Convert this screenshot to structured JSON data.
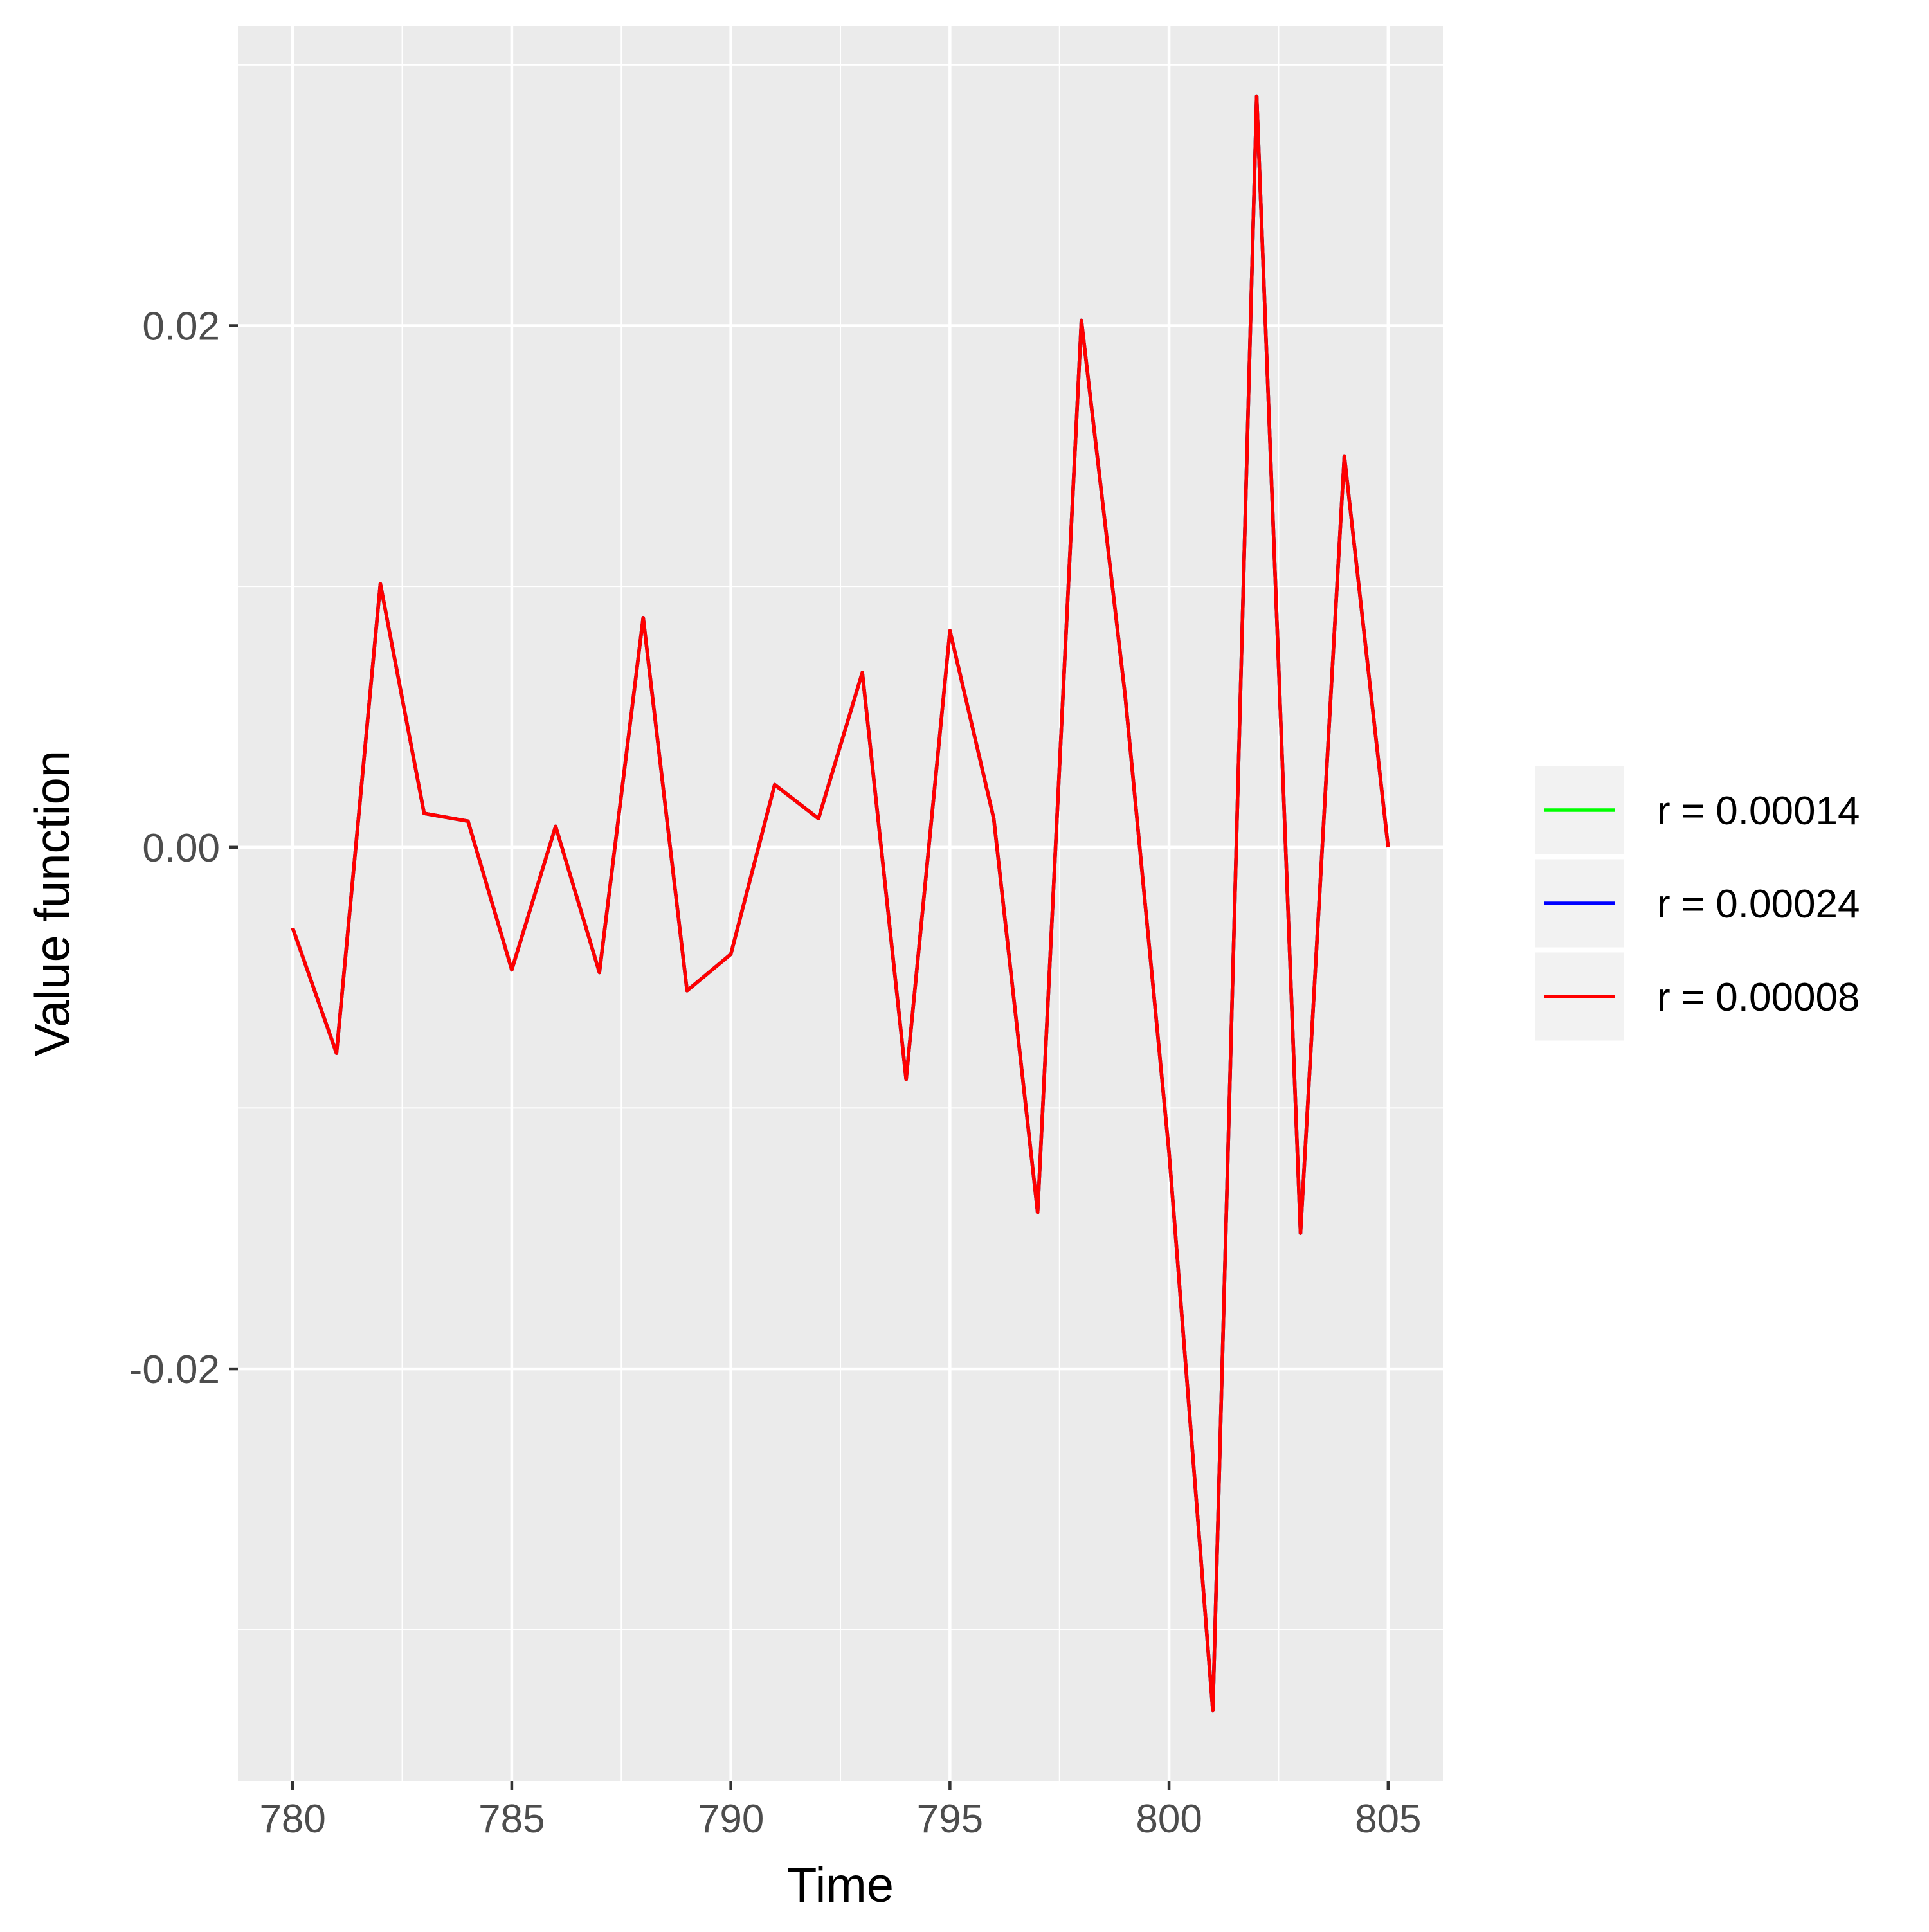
{
  "chart_data": {
    "type": "line",
    "xlabel": "Time",
    "ylabel": "Value function",
    "xlim": [
      778.75,
      806.25
    ],
    "ylim": [
      -0.0358,
      0.0315
    ],
    "x_ticks": [
      780,
      785,
      790,
      795,
      800,
      805
    ],
    "x_tick_labels": [
      "780",
      "785",
      "790",
      "795",
      "800",
      "805"
    ],
    "y_ticks": [
      -0.02,
      0.0,
      0.02
    ],
    "y_tick_labels": [
      "-0.02",
      "0.00",
      "0.02"
    ],
    "grid": true,
    "legend_position": "right",
    "background_color": "#ebebeb",
    "grid_color": "#ffffff",
    "x": [
      780,
      781,
      782,
      783,
      784,
      785,
      786,
      787,
      788,
      789,
      790,
      791,
      792,
      793,
      794,
      795,
      796,
      797,
      798,
      799,
      800,
      801,
      802,
      803,
      804,
      805
    ],
    "series": [
      {
        "name": "r = 0.00014",
        "color": "#00ff00",
        "values": [
          -0.0031,
          -0.0079,
          0.0101,
          0.0013,
          0.001,
          -0.0047,
          0.0008,
          -0.0048,
          0.0088,
          -0.0055,
          -0.0041,
          0.0024,
          0.0011,
          0.0067,
          -0.0089,
          0.0083,
          0.0011,
          -0.014,
          0.0202,
          0.0058,
          -0.0117,
          -0.0331,
          0.0288,
          -0.0148,
          0.015,
          0.0
        ]
      },
      {
        "name": "r = 0.00024",
        "color": "#0000ff",
        "values": [
          -0.0031,
          -0.0079,
          0.0101,
          0.0013,
          0.001,
          -0.0047,
          0.0008,
          -0.0048,
          0.0088,
          -0.0055,
          -0.0041,
          0.0024,
          0.0011,
          0.0067,
          -0.0089,
          0.0083,
          0.0011,
          -0.014,
          0.0202,
          0.0058,
          -0.0117,
          -0.0331,
          0.0288,
          -0.0148,
          0.015,
          0.0
        ]
      },
      {
        "name": "r = 0.00008",
        "color": "#ff0000",
        "values": [
          -0.0031,
          -0.0079,
          0.0101,
          0.0013,
          0.001,
          -0.0047,
          0.0008,
          -0.0048,
          0.0088,
          -0.0055,
          -0.0041,
          0.0024,
          0.0011,
          0.0067,
          -0.0089,
          0.0083,
          0.0011,
          -0.014,
          0.0202,
          0.0058,
          -0.0117,
          -0.0331,
          0.0288,
          -0.0148,
          0.015,
          0.0
        ]
      }
    ]
  }
}
